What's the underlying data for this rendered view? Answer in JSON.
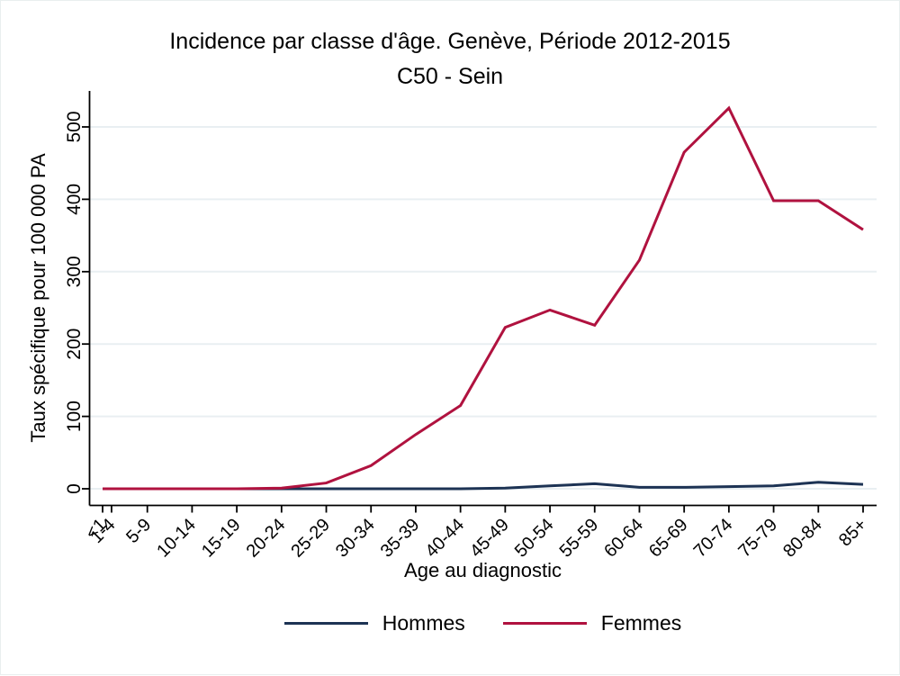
{
  "colors": {
    "grid": "#e9eff2",
    "axis": "#000000",
    "background": "#ffffff"
  },
  "chart_data": {
    "type": "line",
    "title": "Incidence par classe d'âge. Genève, Période 2012-2015",
    "subtitle": "C50 - Sein",
    "xlabel": "Age au diagnostic",
    "ylabel": "Taux spécifique pour 100 000 PA",
    "categories": [
      "<1",
      "1-4",
      "5-9",
      "10-14",
      "15-19",
      "20-24",
      "25-29",
      "30-34",
      "35-39",
      "40-44",
      "45-49",
      "50-54",
      "55-59",
      "60-64",
      "65-69",
      "70-74",
      "75-79",
      "80-84",
      "85+"
    ],
    "x_ages": [
      0,
      1,
      5,
      10,
      15,
      20,
      25,
      30,
      35,
      40,
      45,
      50,
      55,
      60,
      65,
      70,
      75,
      80,
      85
    ],
    "y_ticks": [
      0,
      100,
      200,
      300,
      400,
      500
    ],
    "ylim": [
      0,
      547
    ],
    "grid": true,
    "legend_position": "bottom",
    "series": [
      {
        "name": "Hommes",
        "color": "#1d3354",
        "values": [
          0,
          0,
          0,
          0,
          0,
          0,
          0,
          0,
          0,
          0,
          1,
          4,
          7,
          2,
          2,
          3,
          4,
          9,
          6
        ]
      },
      {
        "name": "Femmes",
        "color": "#b0123f",
        "values": [
          0,
          0,
          0,
          0,
          0,
          1,
          8,
          32,
          75,
          115,
          223,
          247,
          226,
          316,
          465,
          526,
          398,
          398,
          358
        ]
      }
    ]
  }
}
